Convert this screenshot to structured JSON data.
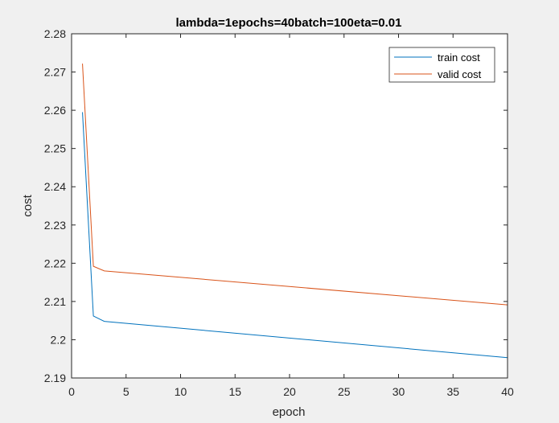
{
  "chart_data": {
    "type": "line",
    "title": "lambda=1epochs=40batch=100eta=0.01",
    "xlabel": "epoch",
    "ylabel": "cost",
    "xlim": [
      0,
      40
    ],
    "ylim": [
      2.19,
      2.28
    ],
    "xticks": [
      0,
      5,
      10,
      15,
      20,
      25,
      30,
      35,
      40
    ],
    "xtick_labels": [
      "0",
      "5",
      "10",
      "15",
      "20",
      "25",
      "30",
      "35",
      "40"
    ],
    "yticks": [
      2.19,
      2.2,
      2.21,
      2.22,
      2.23,
      2.24,
      2.25,
      2.26,
      2.27,
      2.28
    ],
    "ytick_labels": [
      "2.19",
      "2.2",
      "2.21",
      "2.22",
      "2.23",
      "2.24",
      "2.25",
      "2.26",
      "2.27",
      "2.28"
    ],
    "grid": false,
    "legend_position": "top-right",
    "series": [
      {
        "name": "train cost",
        "color": "#0072BD",
        "x": [
          1,
          2,
          3,
          40
        ],
        "y": [
          2.2595,
          2.2062,
          2.2048,
          2.1953
        ]
      },
      {
        "name": "valid cost",
        "color": "#D95319",
        "x": [
          1,
          2,
          3,
          40
        ],
        "y": [
          2.2722,
          2.2192,
          2.218,
          2.2091
        ]
      }
    ]
  }
}
